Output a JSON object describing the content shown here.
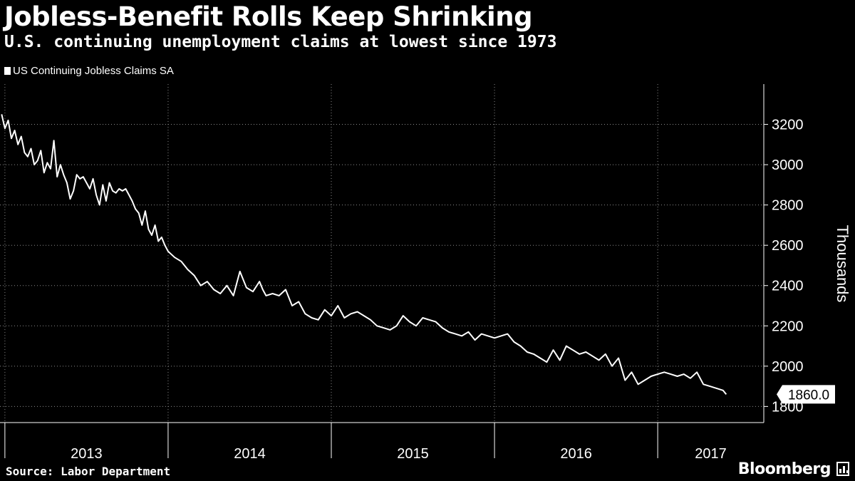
{
  "header": {
    "title": "Jobless-Benefit Rolls Keep Shrinking",
    "subtitle": "U.S. continuing unemployment claims at lowest since 1973"
  },
  "legend": {
    "label": "US Continuing Jobless Claims SA"
  },
  "footer": {
    "source": "Source: Labor Department",
    "brand": "Bloomberg"
  },
  "colors": {
    "background": "#000000",
    "line": "#ffffff",
    "grid": "#8a8a8a"
  },
  "chart_data": {
    "type": "line",
    "title": "Jobless-Benefit Rolls Keep Shrinking",
    "subtitle": "U.S. continuing unemployment claims at lowest since 1973",
    "ylabel": "Thousands",
    "xlabel": "",
    "ylim": [
      1720,
      3400
    ],
    "yticks": [
      1800,
      2000,
      2200,
      2400,
      2600,
      2800,
      3000,
      3200
    ],
    "xlim": [
      2012.97,
      2017.65
    ],
    "year_labels": [
      "2013",
      "2014",
      "2015",
      "2016",
      "2017"
    ],
    "grid": true,
    "legend_position": "top-left",
    "last_value_label": "1860.0",
    "series": [
      {
        "name": "US Continuing Jobless Claims SA",
        "x": [
          2012.98,
          2013.0,
          2013.02,
          2013.04,
          2013.06,
          2013.08,
          2013.1,
          2013.12,
          2013.14,
          2013.16,
          2013.18,
          2013.2,
          2013.22,
          2013.24,
          2013.26,
          2013.28,
          2013.3,
          2013.32,
          2013.34,
          2013.36,
          2013.38,
          2013.4,
          2013.42,
          2013.44,
          2013.46,
          2013.48,
          2013.5,
          2013.52,
          2013.54,
          2013.56,
          2013.58,
          2013.6,
          2013.62,
          2013.64,
          2013.66,
          2013.68,
          2013.7,
          2013.72,
          2013.74,
          2013.76,
          2013.78,
          2013.8,
          2013.82,
          2013.84,
          2013.86,
          2013.88,
          2013.9,
          2013.92,
          2013.94,
          2013.96,
          2013.98,
          2014.0,
          2014.04,
          2014.08,
          2014.12,
          2014.16,
          2014.2,
          2014.24,
          2014.28,
          2014.32,
          2014.36,
          2014.4,
          2014.44,
          2014.48,
          2014.52,
          2014.56,
          2014.58,
          2014.6,
          2014.64,
          2014.68,
          2014.72,
          2014.76,
          2014.8,
          2014.84,
          2014.88,
          2014.92,
          2014.96,
          2015.0,
          2015.04,
          2015.08,
          2015.12,
          2015.16,
          2015.2,
          2015.24,
          2015.28,
          2015.32,
          2015.36,
          2015.4,
          2015.44,
          2015.48,
          2015.52,
          2015.56,
          2015.6,
          2015.64,
          2015.68,
          2015.72,
          2015.76,
          2015.8,
          2015.84,
          2015.88,
          2015.92,
          2015.96,
          2016.0,
          2016.04,
          2016.08,
          2016.12,
          2016.16,
          2016.2,
          2016.24,
          2016.28,
          2016.32,
          2016.36,
          2016.4,
          2016.44,
          2016.48,
          2016.52,
          2016.56,
          2016.6,
          2016.64,
          2016.68,
          2016.72,
          2016.76,
          2016.8,
          2016.84,
          2016.88,
          2016.92,
          2016.96,
          2017.0,
          2017.04,
          2017.08,
          2017.12,
          2017.16,
          2017.2,
          2017.24,
          2017.28,
          2017.32,
          2017.36,
          2017.4,
          2017.42
        ],
        "values": [
          3250,
          3180,
          3220,
          3130,
          3170,
          3100,
          3140,
          3060,
          3040,
          3080,
          3000,
          3020,
          3070,
          2960,
          3010,
          2980,
          3120,
          2940,
          3000,
          2950,
          2910,
          2830,
          2870,
          2950,
          2930,
          2940,
          2910,
          2880,
          2930,
          2850,
          2800,
          2900,
          2820,
          2910,
          2870,
          2860,
          2880,
          2870,
          2880,
          2850,
          2820,
          2780,
          2760,
          2700,
          2770,
          2680,
          2650,
          2700,
          2620,
          2640,
          2600,
          2570,
          2540,
          2520,
          2480,
          2450,
          2400,
          2420,
          2380,
          2360,
          2400,
          2350,
          2470,
          2390,
          2370,
          2420,
          2380,
          2350,
          2360,
          2350,
          2380,
          2300,
          2320,
          2260,
          2240,
          2230,
          2280,
          2250,
          2300,
          2240,
          2260,
          2270,
          2250,
          2230,
          2200,
          2190,
          2180,
          2200,
          2250,
          2220,
          2200,
          2240,
          2230,
          2220,
          2190,
          2170,
          2160,
          2150,
          2170,
          2130,
          2160,
          2150,
          2140,
          2150,
          2160,
          2120,
          2100,
          2070,
          2060,
          2040,
          2020,
          2080,
          2030,
          2100,
          2080,
          2060,
          2070,
          2050,
          2030,
          2060,
          2000,
          2040,
          1930,
          1970,
          1910,
          1930,
          1950,
          1960,
          1970,
          1960,
          1950,
          1960,
          1940,
          1970,
          1910,
          1900,
          1890,
          1880,
          1860
        ]
      }
    ]
  }
}
